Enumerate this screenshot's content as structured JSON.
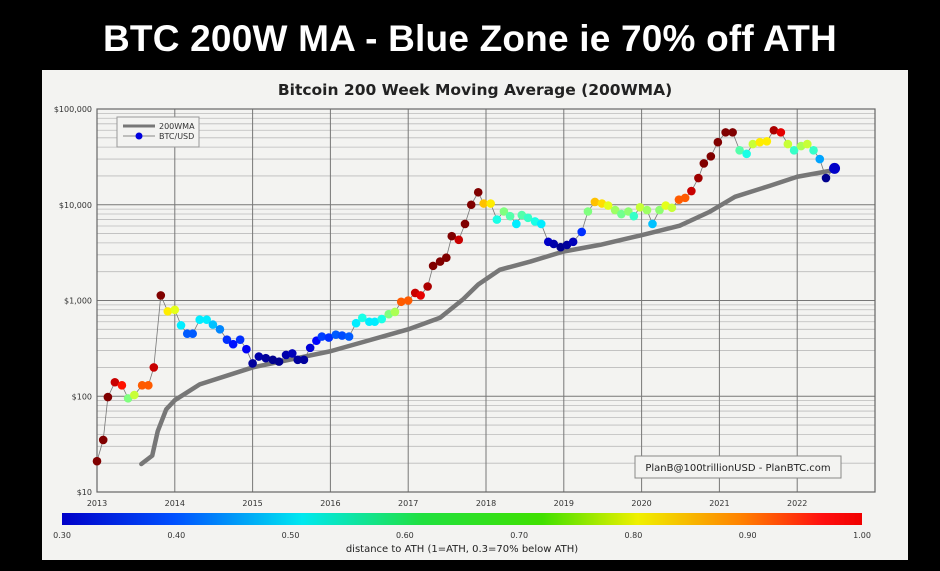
{
  "slide_title": "BTC 200W MA - Blue Zone ie 70% off ATH",
  "chart_data": {
    "type": "scatter",
    "title": "Bitcoin 200 Week Moving Average (200WMA)",
    "xlabel": "",
    "ylabel": "",
    "yscale": "log",
    "xlim": [
      2013,
      2023
    ],
    "ylim": [
      10,
      100000
    ],
    "grid": true,
    "x_tick_labels": [
      "2013",
      "2014",
      "2015",
      "2016",
      "2017",
      "2018",
      "2019",
      "2020",
      "2021",
      "2022"
    ],
    "y_ticks": [
      10,
      100,
      1000,
      10000,
      100000
    ],
    "y_tick_labels": [
      "$10",
      "$100",
      "$1,000",
      "$10,000",
      "$100,000"
    ],
    "legend": {
      "position": "top-left",
      "entries": [
        "200WMA",
        "BTC/USD"
      ]
    },
    "annotation": "PlanB@100trillionUSD  -  PlanBTC.com",
    "colorbar": {
      "label": "distance to ATH (1=ATH, 0.3=70% below ATH)",
      "range": [
        0.3,
        1.0
      ],
      "tick_labels": [
        "0.30",
        "0.40",
        "0.50",
        "0.60",
        "0.70",
        "0.80",
        "0.90",
        "1.00"
      ],
      "colormap": "jet"
    },
    "series": [
      {
        "name": "200WMA",
        "color": "#777777",
        "type": "line",
        "x": [
          2013.57,
          2013.71,
          2013.78,
          2013.89,
          2014.0,
          2014.32,
          2015.0,
          2016.0,
          2017.0,
          2017.41,
          2017.7,
          2017.9,
          2018.18,
          2018.57,
          2018.99,
          2019.47,
          2019.98,
          2020.49,
          2020.88,
          2021.2,
          2021.65,
          2022.0,
          2022.5
        ],
        "y": [
          19.6,
          24,
          43,
          73,
          91,
          133,
          200,
          295,
          500,
          660,
          1020,
          1470,
          2100,
          2550,
          3240,
          3820,
          4770,
          6040,
          8480,
          12100,
          15800,
          19600,
          23200
        ]
      },
      {
        "name": "BTC/USD",
        "type": "scatter",
        "x": [
          2013.0,
          2013.08,
          2013.14,
          2013.23,
          2013.32,
          2013.4,
          2013.48,
          2013.58,
          2013.66,
          2013.73,
          2013.82,
          2013.91,
          2014.0,
          2014.08,
          2014.16,
          2014.23,
          2014.32,
          2014.41,
          2014.49,
          2014.58,
          2014.67,
          2014.75,
          2014.84,
          2014.92,
          2015.0,
          2015.08,
          2015.17,
          2015.26,
          2015.34,
          2015.43,
          2015.51,
          2015.58,
          2015.66,
          2015.74,
          2015.82,
          2015.89,
          2015.98,
          2016.07,
          2016.15,
          2016.24,
          2016.33,
          2016.41,
          2016.5,
          2016.57,
          2016.66,
          2016.75,
          2016.83,
          2016.91,
          2017.0,
          2017.09,
          2017.16,
          2017.25,
          2017.32,
          2017.41,
          2017.49,
          2017.56,
          2017.65,
          2017.73,
          2017.81,
          2017.9,
          2017.97,
          2018.06,
          2018.14,
          2018.23,
          2018.31,
          2018.39,
          2018.46,
          2018.54,
          2018.63,
          2018.71,
          2018.8,
          2018.87,
          2018.96,
          2019.04,
          2019.12,
          2019.23,
          2019.31,
          2019.4,
          2019.49,
          2019.57,
          2019.66,
          2019.74,
          2019.83,
          2019.9,
          2019.98,
          2020.07,
          2020.14,
          2020.23,
          2020.31,
          2020.39,
          2020.48,
          2020.56,
          2020.64,
          2020.73,
          2020.8,
          2020.89,
          2020.98,
          2021.08,
          2021.17,
          2021.26,
          2021.35,
          2021.43,
          2021.52,
          2021.61,
          2021.7,
          2021.79,
          2021.88,
          2021.96,
          2022.05,
          2022.13,
          2022.21,
          2022.29,
          2022.37,
          2022.48
        ],
        "y": [
          21,
          35,
          98,
          140,
          130,
          95,
          103,
          130,
          130,
          200,
          1130,
          770,
          800,
          550,
          450,
          450,
          630,
          630,
          560,
          500,
          390,
          350,
          390,
          310,
          220,
          260,
          250,
          240,
          230,
          270,
          280,
          240,
          240,
          320,
          380,
          420,
          410,
          440,
          430,
          420,
          580,
          660,
          600,
          600,
          640,
          720,
          760,
          970,
          1000,
          1200,
          1130,
          1400,
          2300,
          2550,
          2800,
          4700,
          4300,
          6300,
          10000,
          13500,
          10300,
          10300,
          7000,
          8500,
          7600,
          6300,
          7800,
          7300,
          6700,
          6300,
          4100,
          3900,
          3600,
          3800,
          4100,
          5200,
          8500,
          10700,
          10300,
          9800,
          8800,
          8000,
          8500,
          7600,
          9400,
          8800,
          6300,
          8800,
          9800,
          9300,
          11300,
          11800,
          13900,
          19000,
          27000,
          32000,
          45000,
          57000,
          57000,
          37000,
          34000,
          43000,
          45000,
          46000,
          60000,
          57000,
          43000,
          37000,
          41000,
          43000,
          37000,
          30000,
          19000,
          24000
        ],
        "distance_to_ath": [
          1.0,
          1.0,
          1.0,
          0.95,
          0.9,
          0.65,
          0.7,
          0.85,
          0.85,
          0.95,
          1.0,
          0.75,
          0.72,
          0.55,
          0.45,
          0.45,
          0.55,
          0.55,
          0.52,
          0.48,
          0.42,
          0.4,
          0.42,
          0.38,
          0.32,
          0.33,
          0.32,
          0.31,
          0.31,
          0.33,
          0.34,
          0.32,
          0.32,
          0.36,
          0.39,
          0.43,
          0.42,
          0.45,
          0.44,
          0.45,
          0.55,
          0.58,
          0.55,
          0.55,
          0.58,
          0.65,
          0.68,
          0.85,
          0.85,
          0.95,
          0.93,
          0.97,
          1.0,
          1.0,
          1.0,
          1.0,
          0.95,
          1.0,
          1.0,
          1.0,
          0.78,
          0.75,
          0.58,
          0.65,
          0.62,
          0.55,
          0.62,
          0.6,
          0.58,
          0.55,
          0.35,
          0.33,
          0.31,
          0.32,
          0.34,
          0.42,
          0.65,
          0.78,
          0.76,
          0.72,
          0.67,
          0.64,
          0.66,
          0.6,
          0.7,
          0.67,
          0.52,
          0.66,
          0.72,
          0.7,
          0.85,
          0.85,
          0.95,
          0.98,
          1.0,
          1.0,
          1.0,
          1.0,
          1.0,
          0.62,
          0.58,
          0.7,
          0.75,
          0.75,
          0.97,
          0.93,
          0.7,
          0.6,
          0.68,
          0.7,
          0.6,
          0.5,
          0.31,
          0.35
        ]
      }
    ]
  }
}
